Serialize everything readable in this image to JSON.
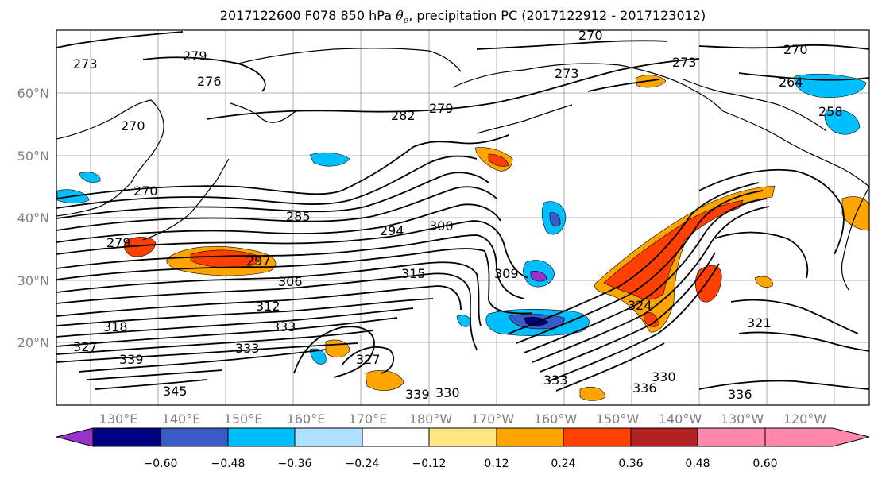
{
  "title": {
    "prefix": "2017122600 F078 850 hPa ",
    "theta_symbol": "θ",
    "theta_sub": "e",
    "suffix": ", precipitation PC (2017122912 - 2017123012)"
  },
  "lat_labels": [
    "60°N",
    "50°N",
    "40°N",
    "30°N",
    "20°N"
  ],
  "lon_labels": [
    "130°E",
    "140°E",
    "150°E",
    "160°E",
    "170°E",
    "180°W",
    "170°W",
    "160°W",
    "150°W",
    "140°W",
    "130°W",
    "120°W"
  ],
  "contour_labels": [
    "273",
    "279",
    "276",
    "270",
    "270",
    "279",
    "282",
    "273",
    "273",
    "270",
    "264",
    "258",
    "270",
    "285",
    "294",
    "300",
    "279",
    "297",
    "306",
    "315",
    "309",
    "312",
    "318",
    "333",
    "324",
    "321",
    "336",
    "339",
    "345",
    "330",
    "333",
    "336",
    "327",
    "330",
    "327",
    "333",
    "339"
  ],
  "colorbar": {
    "ticks": [
      "−0.60",
      "−0.48",
      "−0.36",
      "−0.24",
      "−0.12",
      "0.12",
      "0.24",
      "0.36",
      "0.48",
      "0.60"
    ],
    "colors": [
      "#9932CC",
      "#000080",
      "#3A5BC7",
      "#00BFFF",
      "#B0E0FF",
      "#FFFFFF",
      "#FFE680",
      "#FFA500",
      "#FF4000",
      "#B22222",
      "#FF88AA"
    ],
    "levels": [
      -0.6,
      -0.48,
      -0.36,
      -0.24,
      -0.12,
      0.12,
      0.24,
      0.36,
      0.48,
      0.6
    ]
  },
  "map": {
    "lon_range": [
      "125°E",
      "115°W"
    ],
    "lat_range": [
      "10°N",
      "70°N"
    ]
  }
}
